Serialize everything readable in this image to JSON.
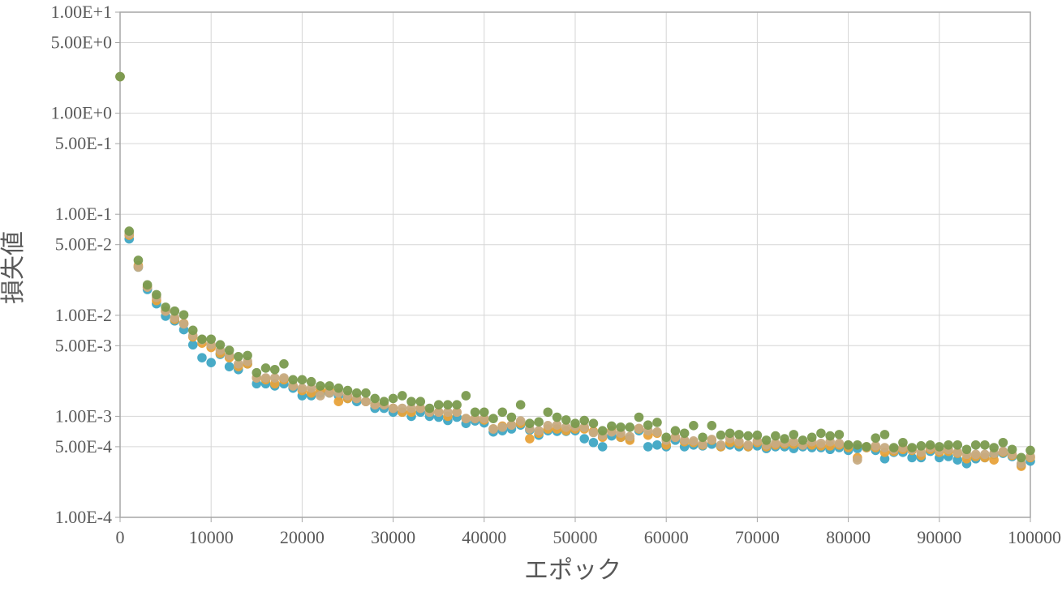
{
  "chart_data": {
    "type": "scatter",
    "title": "",
    "xlabel": "エポック",
    "ylabel": "損失値",
    "xlim": [
      0,
      100000
    ],
    "ylim": [
      0.0001,
      10
    ],
    "yscale": "log",
    "grid": true,
    "legend": "none",
    "x_ticks": [
      0,
      10000,
      20000,
      30000,
      40000,
      50000,
      60000,
      70000,
      80000,
      90000,
      100000
    ],
    "x_tick_labels": [
      "0",
      "10000",
      "20000",
      "30000",
      "40000",
      "50000",
      "60000",
      "70000",
      "80000",
      "90000",
      "100000"
    ],
    "y_ticks": [
      0.0001,
      0.0005,
      0.001,
      0.005,
      0.01,
      0.05,
      0.1,
      0.5,
      1,
      5,
      10
    ],
    "y_tick_labels": [
      "1.00E-4",
      "5.00E-4",
      "1.00E-3",
      "5.00E-3",
      "1.00E-2",
      "5.00E-2",
      "1.00E-1",
      "5.00E-1",
      "1.00E+0",
      "5.00E+0",
      "1.00E+1"
    ],
    "x": [
      0,
      1000,
      2000,
      3000,
      4000,
      5000,
      6000,
      7000,
      8000,
      9000,
      10000,
      11000,
      12000,
      13000,
      14000,
      15000,
      16000,
      17000,
      18000,
      19000,
      20000,
      21000,
      22000,
      23000,
      24000,
      25000,
      26000,
      27000,
      28000,
      29000,
      30000,
      31000,
      32000,
      33000,
      34000,
      35000,
      36000,
      37000,
      38000,
      39000,
      40000,
      41000,
      42000,
      43000,
      44000,
      45000,
      46000,
      47000,
      48000,
      49000,
      50000,
      51000,
      52000,
      53000,
      54000,
      55000,
      56000,
      57000,
      58000,
      59000,
      60000,
      61000,
      62000,
      63000,
      64000,
      65000,
      66000,
      67000,
      68000,
      69000,
      70000,
      71000,
      72000,
      73000,
      74000,
      75000,
      76000,
      77000,
      78000,
      79000,
      80000,
      81000,
      82000,
      83000,
      84000,
      85000,
      86000,
      87000,
      88000,
      89000,
      90000,
      91000,
      92000,
      93000,
      94000,
      95000,
      96000,
      97000,
      98000,
      99000,
      100000
    ],
    "series": [
      {
        "color": "#3fa7c4",
        "values": [
          2.3,
          0.057,
          0.03,
          0.018,
          0.013,
          0.0098,
          0.0088,
          0.0072,
          0.0051,
          0.0038,
          0.0034,
          0.0041,
          0.0031,
          0.0029,
          0.0033,
          0.0021,
          0.0021,
          0.002,
          0.0021,
          0.0019,
          0.0016,
          0.0016,
          0.0017,
          0.0017,
          0.0016,
          0.0015,
          0.0014,
          0.0014,
          0.0012,
          0.0012,
          0.0011,
          0.0011,
          0.001,
          0.0011,
          0.001,
          0.00098,
          0.00091,
          0.00098,
          0.00085,
          0.0009,
          0.00086,
          0.0007,
          0.00072,
          0.00075,
          0.00082,
          0.00073,
          0.00065,
          0.00072,
          0.00071,
          0.00071,
          0.00072,
          0.0006,
          0.00055,
          0.0005,
          0.00064,
          0.00062,
          0.0006,
          0.00072,
          0.0005,
          0.00052,
          0.0005,
          0.00058,
          0.0005,
          0.00052,
          0.00051,
          0.00053,
          0.0005,
          0.00052,
          0.0005,
          0.0005,
          0.00051,
          0.00048,
          0.0005,
          0.0005,
          0.00048,
          0.0005,
          0.00049,
          0.00049,
          0.00047,
          0.00049,
          0.00046,
          0.00048,
          0.00049,
          0.00046,
          0.00038,
          0.00044,
          0.00044,
          0.00039,
          0.00039,
          0.00045,
          0.00039,
          0.0004,
          0.00037,
          0.00034,
          0.00038,
          0.00039,
          0.00042,
          0.00043,
          0.0004,
          0.00033,
          0.00036
        ]
      },
      {
        "color": "#e8a23a",
        "values": [
          2.3,
          0.062,
          0.031,
          0.019,
          0.014,
          0.011,
          0.0091,
          0.0083,
          0.0061,
          0.0053,
          0.0048,
          0.0042,
          0.0038,
          0.0031,
          0.0033,
          0.0024,
          0.0023,
          0.0021,
          0.0023,
          0.002,
          0.0018,
          0.0017,
          0.0018,
          0.0018,
          0.0014,
          0.0015,
          0.0015,
          0.0014,
          0.0013,
          0.0013,
          0.0012,
          0.0011,
          0.0011,
          0.0012,
          0.0011,
          0.0011,
          0.001,
          0.0011,
          0.00095,
          0.00095,
          0.00092,
          0.00075,
          0.0008,
          0.00082,
          0.00085,
          0.0006,
          0.00068,
          0.00075,
          0.00075,
          0.00072,
          0.00075,
          0.00075,
          0.00071,
          0.00062,
          0.00072,
          0.00062,
          0.00058,
          0.00075,
          0.00065,
          0.00068,
          0.00052,
          0.00062,
          0.00056,
          0.00055,
          0.00052,
          0.00058,
          0.0005,
          0.00055,
          0.00053,
          0.0005,
          0.00055,
          0.0005,
          0.00052,
          0.00053,
          0.00053,
          0.00052,
          0.00052,
          0.00051,
          0.00051,
          0.00052,
          0.00049,
          0.00039,
          0.00049,
          0.00049,
          0.00044,
          0.00045,
          0.00047,
          0.00046,
          0.00041,
          0.00047,
          0.00044,
          0.00045,
          0.00043,
          0.00038,
          0.0004,
          0.00039,
          0.00037,
          0.00044,
          0.00041,
          0.00032,
          0.00039
        ]
      },
      {
        "color": "#c7ab82",
        "values": [
          2.3,
          0.064,
          0.03,
          0.019,
          0.015,
          0.011,
          0.0094,
          0.0082,
          0.0063,
          0.0057,
          0.0051,
          0.0045,
          0.004,
          0.0033,
          0.0035,
          0.0024,
          0.0024,
          0.0024,
          0.0024,
          0.002,
          0.0019,
          0.0019,
          0.0016,
          0.0017,
          0.0017,
          0.0016,
          0.0015,
          0.0014,
          0.0013,
          0.0013,
          0.0012,
          0.0012,
          0.0012,
          0.0012,
          0.0011,
          0.0011,
          0.0011,
          0.0011,
          0.00095,
          0.00095,
          0.00095,
          0.00075,
          0.00078,
          0.00082,
          0.0009,
          0.00075,
          0.00072,
          0.00081,
          0.00082,
          0.00078,
          0.00079,
          0.00078,
          0.00069,
          0.00065,
          0.0007,
          0.00068,
          0.00063,
          0.00076,
          0.00072,
          0.0007,
          0.00058,
          0.00062,
          0.00058,
          0.00057,
          0.00053,
          0.00059,
          0.00052,
          0.0006,
          0.00056,
          0.00052,
          0.00057,
          0.00052,
          0.00054,
          0.00055,
          0.00056,
          0.00052,
          0.00056,
          0.00054,
          0.00056,
          0.00054,
          0.00052,
          0.00037,
          0.0005,
          0.00051,
          0.00049,
          0.00047,
          0.00049,
          0.00047,
          0.00044,
          0.00049,
          0.00046,
          0.00047,
          0.00044,
          0.00042,
          0.00042,
          0.00042,
          0.00043,
          0.00045,
          0.00042,
          0.00034,
          0.0004
        ]
      },
      {
        "color": "#7a9a4e",
        "values": [
          2.3,
          0.068,
          0.035,
          0.02,
          0.016,
          0.012,
          0.011,
          0.0101,
          0.0071,
          0.0058,
          0.0058,
          0.0051,
          0.0045,
          0.0039,
          0.004,
          0.0027,
          0.003,
          0.0029,
          0.0033,
          0.0023,
          0.0023,
          0.0022,
          0.002,
          0.002,
          0.0019,
          0.0018,
          0.0017,
          0.0017,
          0.0015,
          0.0014,
          0.0015,
          0.0016,
          0.0014,
          0.0014,
          0.0012,
          0.0013,
          0.0013,
          0.0013,
          0.0016,
          0.0011,
          0.0011,
          0.00095,
          0.0011,
          0.00098,
          0.0013,
          0.00085,
          0.00088,
          0.0011,
          0.00098,
          0.00092,
          0.00085,
          0.00091,
          0.00085,
          0.00072,
          0.0008,
          0.00078,
          0.00078,
          0.00098,
          0.00082,
          0.00087,
          0.00062,
          0.00072,
          0.00068,
          0.00081,
          0.00062,
          0.00081,
          0.00065,
          0.00068,
          0.00066,
          0.00064,
          0.00065,
          0.00058,
          0.00064,
          0.0006,
          0.00066,
          0.00058,
          0.00062,
          0.00068,
          0.00064,
          0.00066,
          0.00052,
          0.00052,
          0.0005,
          0.00061,
          0.00066,
          0.00049,
          0.00055,
          0.00049,
          0.00051,
          0.00052,
          0.0005,
          0.00052,
          0.00052,
          0.00047,
          0.00052,
          0.00052,
          0.00049,
          0.00055,
          0.00047,
          0.00039,
          0.00046
        ]
      }
    ]
  }
}
